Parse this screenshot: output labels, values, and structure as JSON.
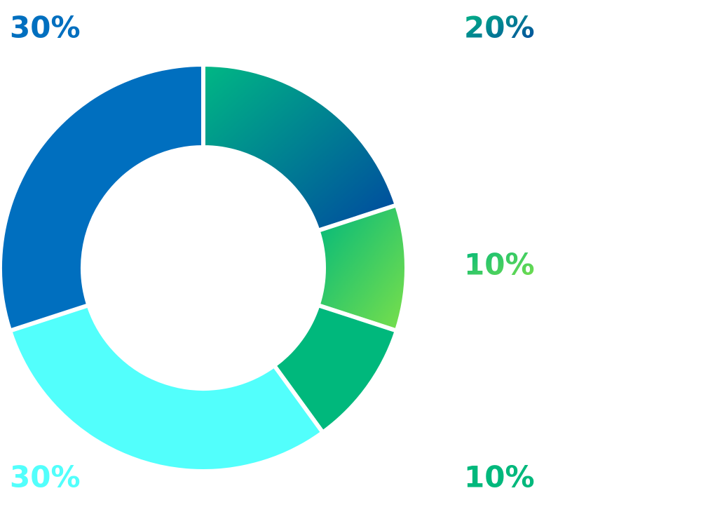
{
  "chart_data": {
    "type": "donut",
    "values": [
      20,
      10,
      10,
      30,
      30
    ],
    "value_labels": [
      "20%",
      "10%",
      "10%",
      "30%",
      "30%"
    ],
    "colors": [
      [
        "#00b884",
        "#0047a0"
      ],
      [
        "#00b87c",
        "#7be04a"
      ],
      "#00b87c",
      "#52fffc",
      "#006fbf"
    ]
  }
}
